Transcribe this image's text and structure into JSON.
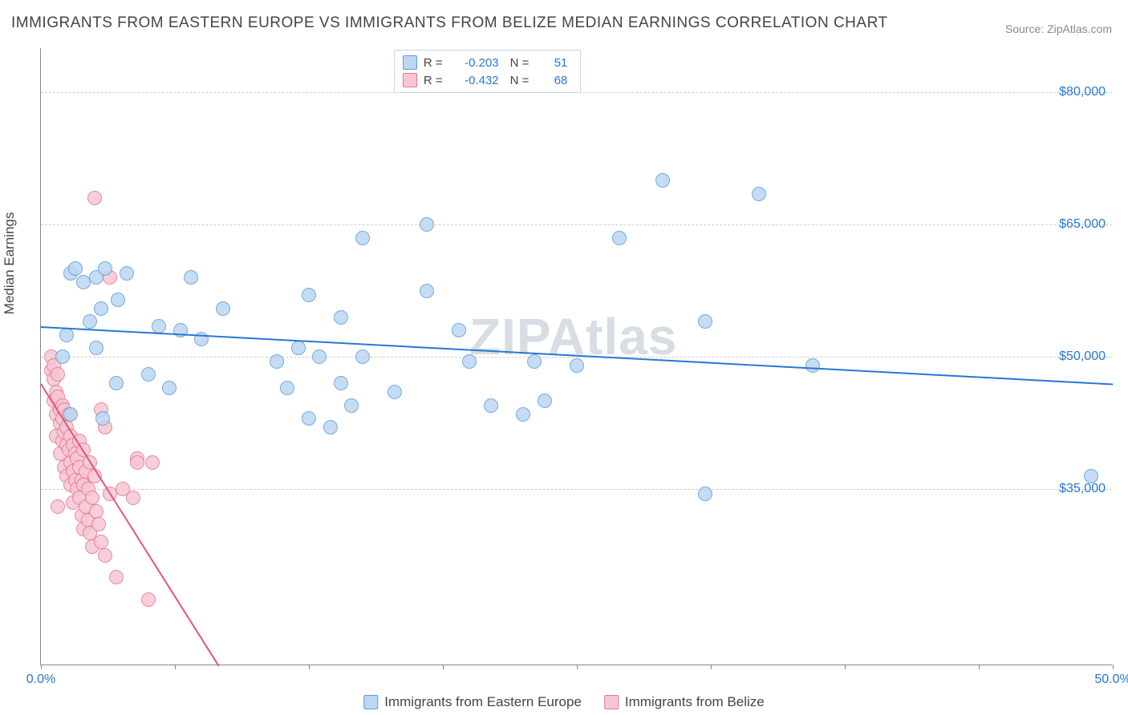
{
  "title": "IMMIGRANTS FROM EASTERN EUROPE VS IMMIGRANTS FROM BELIZE MEDIAN EARNINGS CORRELATION CHART",
  "source": "Source: ZipAtlas.com",
  "watermark": "ZIPAtlas",
  "yaxis_label": "Median Earnings",
  "chart": {
    "type": "scatter",
    "background_color": "#ffffff",
    "grid_color": "#cccccc",
    "xlim": [
      0,
      50
    ],
    "ylim": [
      15000,
      85000
    ],
    "yticks": [
      {
        "v": 35000,
        "label": "$35,000"
      },
      {
        "v": 50000,
        "label": "$50,000"
      },
      {
        "v": 65000,
        "label": "$65,000"
      },
      {
        "v": 80000,
        "label": "$80,000"
      }
    ],
    "xticks_label": {
      "first": "0.0%",
      "last": "50.0%"
    },
    "xtick_positions": [
      0,
      6.25,
      12.5,
      18.75,
      25,
      31.25,
      37.5,
      43.75,
      50
    ],
    "marker_radius": 9,
    "marker_border_width": 1,
    "label_fontsize": 16,
    "series": [
      {
        "name": "Immigrants from Eastern Europe",
        "key": "eastern_europe",
        "fill_color": "#bdd7f0",
        "border_color": "#5a9de0",
        "line_color": "#2876d6",
        "R": "-0.203",
        "N": "51",
        "trend": {
          "x1": 0,
          "y1": 53500,
          "x2": 50,
          "y2": 47000
        },
        "points": [
          [
            1.0,
            50000
          ],
          [
            1.2,
            52500
          ],
          [
            1.4,
            59500
          ],
          [
            1.4,
            43500
          ],
          [
            1.6,
            60000
          ],
          [
            2.0,
            58500
          ],
          [
            2.3,
            54000
          ],
          [
            2.6,
            59000
          ],
          [
            2.6,
            51000
          ],
          [
            2.8,
            55500
          ],
          [
            2.9,
            43000
          ],
          [
            3.0,
            60000
          ],
          [
            3.5,
            47000
          ],
          [
            3.6,
            56500
          ],
          [
            4.0,
            59500
          ],
          [
            5.5,
            53500
          ],
          [
            6.0,
            46500
          ],
          [
            6.5,
            53000
          ],
          [
            7.0,
            59000
          ],
          [
            7.5,
            52000
          ],
          [
            8.5,
            55500
          ],
          [
            11.0,
            49500
          ],
          [
            11.5,
            46500
          ],
          [
            12.0,
            51000
          ],
          [
            12.5,
            57000
          ],
          [
            12.5,
            43000
          ],
          [
            13.0,
            50000
          ],
          [
            13.5,
            42000
          ],
          [
            14.0,
            47000
          ],
          [
            14.0,
            54500
          ],
          [
            14.5,
            44500
          ],
          [
            15.0,
            50000
          ],
          [
            15.0,
            63500
          ],
          [
            16.5,
            46000
          ],
          [
            18.0,
            65000
          ],
          [
            18.0,
            57500
          ],
          [
            19.5,
            53000
          ],
          [
            20.0,
            49500
          ],
          [
            21.0,
            44500
          ],
          [
            22.5,
            43500
          ],
          [
            23.0,
            49500
          ],
          [
            23.5,
            45000
          ],
          [
            25.0,
            49000
          ],
          [
            27.0,
            63500
          ],
          [
            29.0,
            70000
          ],
          [
            31.0,
            54000
          ],
          [
            31.0,
            34500
          ],
          [
            33.5,
            68500
          ],
          [
            36.0,
            49000
          ],
          [
            49.0,
            36500
          ],
          [
            5.0,
            48000
          ]
        ]
      },
      {
        "name": "Immigrants from Belize",
        "key": "belize",
        "fill_color": "#f6c7d3",
        "border_color": "#e87493",
        "line_color": "#e35678",
        "R": "-0.432",
        "N": "68",
        "trend": {
          "x1": 0,
          "y1": 47000,
          "x2": 8.3,
          "y2": 15000
        },
        "points": [
          [
            0.5,
            50000
          ],
          [
            0.5,
            48500
          ],
          [
            0.6,
            49000
          ],
          [
            0.6,
            45000
          ],
          [
            0.6,
            47500
          ],
          [
            0.7,
            46000
          ],
          [
            0.7,
            43500
          ],
          [
            0.7,
            41000
          ],
          [
            0.8,
            48000
          ],
          [
            0.8,
            45500
          ],
          [
            0.8,
            33000
          ],
          [
            0.9,
            44000
          ],
          [
            0.9,
            42500
          ],
          [
            0.9,
            39000
          ],
          [
            1.0,
            44500
          ],
          [
            1.0,
            43000
          ],
          [
            1.0,
            40500
          ],
          [
            1.1,
            44000
          ],
          [
            1.1,
            41500
          ],
          [
            1.1,
            37500
          ],
          [
            1.2,
            42000
          ],
          [
            1.2,
            40000
          ],
          [
            1.2,
            36500
          ],
          [
            1.3,
            43500
          ],
          [
            1.3,
            39500
          ],
          [
            1.4,
            41000
          ],
          [
            1.4,
            38000
          ],
          [
            1.4,
            35500
          ],
          [
            1.5,
            40000
          ],
          [
            1.5,
            37000
          ],
          [
            1.5,
            33500
          ],
          [
            1.6,
            39000
          ],
          [
            1.6,
            36000
          ],
          [
            1.7,
            38500
          ],
          [
            1.7,
            35000
          ],
          [
            1.8,
            40500
          ],
          [
            1.8,
            37500
          ],
          [
            1.8,
            34000
          ],
          [
            1.9,
            36000
          ],
          [
            1.9,
            32000
          ],
          [
            2.0,
            39500
          ],
          [
            2.0,
            35500
          ],
          [
            2.0,
            30500
          ],
          [
            2.1,
            37000
          ],
          [
            2.1,
            33000
          ],
          [
            2.2,
            35000
          ],
          [
            2.2,
            31500
          ],
          [
            2.3,
            38000
          ],
          [
            2.3,
            30000
          ],
          [
            2.4,
            34000
          ],
          [
            2.4,
            28500
          ],
          [
            2.5,
            36500
          ],
          [
            2.5,
            68000
          ],
          [
            2.6,
            32500
          ],
          [
            2.7,
            31000
          ],
          [
            2.8,
            44000
          ],
          [
            2.8,
            29000
          ],
          [
            3.0,
            42000
          ],
          [
            3.0,
            27500
          ],
          [
            3.2,
            59000
          ],
          [
            3.2,
            34500
          ],
          [
            3.5,
            25000
          ],
          [
            3.8,
            35000
          ],
          [
            4.3,
            34000
          ],
          [
            4.5,
            38500
          ],
          [
            4.5,
            38000
          ],
          [
            5.0,
            22500
          ],
          [
            5.2,
            38000
          ]
        ]
      }
    ]
  },
  "legend": {
    "R_label": "R =",
    "N_label": "N ="
  }
}
